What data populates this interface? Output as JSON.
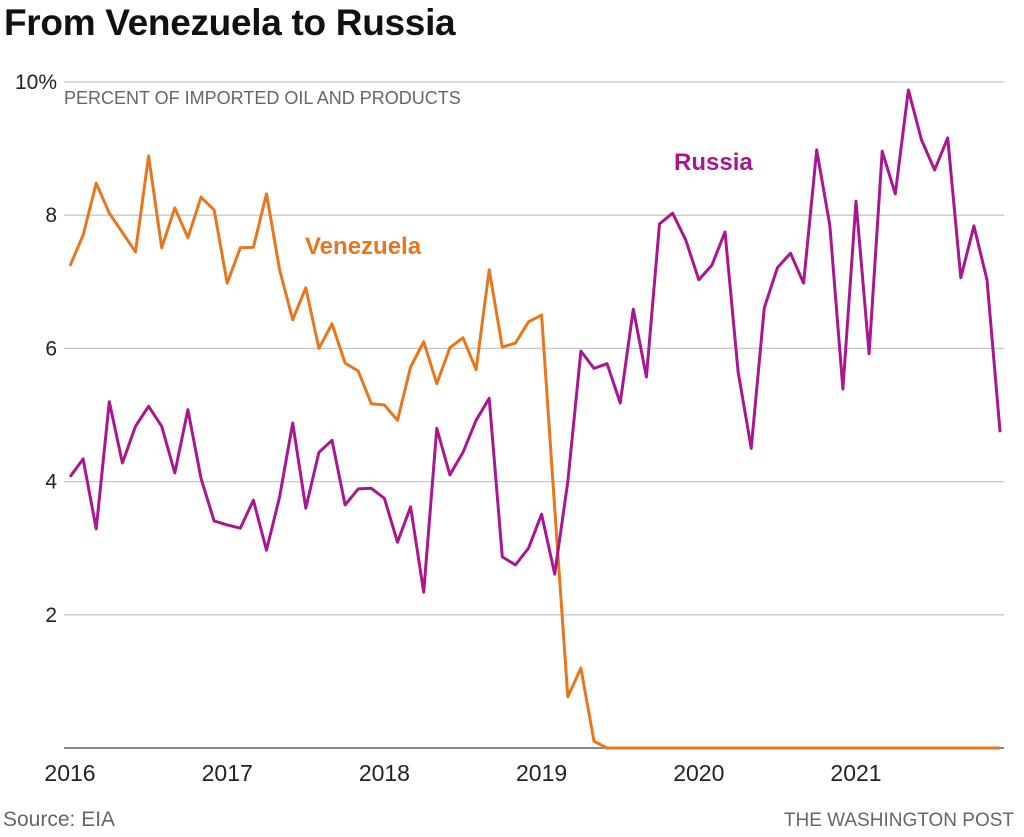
{
  "title": "From Venezuela to Russia",
  "source": "Source: EIA",
  "credit": "THE WASHINGTON POST",
  "chart_data": {
    "type": "line",
    "title": "From Venezuela to Russia",
    "subtitle": "PERCENT OF IMPORTED OIL AND PRODUCTS",
    "xlabel": "",
    "ylabel": "Percent of imported oil and products",
    "x_start": "2016-01",
    "x_frequency": "monthly",
    "x_tick_labels": [
      "2016",
      "2017",
      "2018",
      "2019",
      "2020",
      "2021"
    ],
    "y_ticks": [
      0,
      2,
      4,
      6,
      8,
      10
    ],
    "y_tick_labels": [
      "",
      "2",
      "4",
      "6",
      "8",
      "10%"
    ],
    "ylim": [
      0,
      10
    ],
    "grid": true,
    "legend": "inline-labels",
    "series": [
      {
        "name": "Venezuela",
        "label": "Venezuela",
        "color": "#e8761c",
        "values": [
          7.24,
          7.7,
          8.48,
          8.03,
          7.74,
          7.45,
          8.89,
          7.51,
          8.11,
          7.66,
          8.27,
          8.08,
          6.98,
          7.51,
          7.52,
          8.32,
          7.18,
          6.43,
          6.91,
          6.0,
          6.37,
          5.78,
          5.66,
          5.17,
          5.15,
          4.92,
          5.72,
          6.1,
          5.47,
          6.01,
          6.16,
          5.68,
          7.18,
          6.02,
          6.08,
          6.4,
          6.5,
          3.6,
          0.77,
          1.2,
          0.1,
          0.0,
          0.0,
          0.0,
          0.0,
          0.0,
          0.0,
          0.0,
          0.0,
          0.0,
          0.0,
          0.0,
          0.0,
          0.0,
          0.0,
          0.0,
          0.0,
          0.0,
          0.0,
          0.0,
          0.0,
          0.0,
          0.0,
          0.0,
          0.0,
          0.0,
          0.0,
          0.0,
          0.0,
          0.0,
          0.0,
          0.0
        ]
      },
      {
        "name": "Russia",
        "label": "Russia",
        "color": "#a8178f",
        "values": [
          4.07,
          4.34,
          3.29,
          5.2,
          4.28,
          4.83,
          5.13,
          4.83,
          4.13,
          5.08,
          4.05,
          3.41,
          3.35,
          3.3,
          3.72,
          2.97,
          3.77,
          4.88,
          3.6,
          4.44,
          4.62,
          3.65,
          3.89,
          3.9,
          3.75,
          3.09,
          3.62,
          2.34,
          4.8,
          4.1,
          4.44,
          4.92,
          5.25,
          2.87,
          2.75,
          3.0,
          3.51,
          2.61,
          4.0,
          5.96,
          5.7,
          5.77,
          5.18,
          6.59,
          5.57,
          7.87,
          8.03,
          7.63,
          7.03,
          7.25,
          7.75,
          5.65,
          4.5,
          6.61,
          7.21,
          7.43,
          6.98,
          8.98,
          7.85,
          5.39,
          8.21,
          5.92,
          8.96,
          8.32,
          9.88,
          9.13,
          8.68,
          9.16,
          7.06,
          7.84,
          7.03,
          4.74
        ]
      }
    ]
  }
}
